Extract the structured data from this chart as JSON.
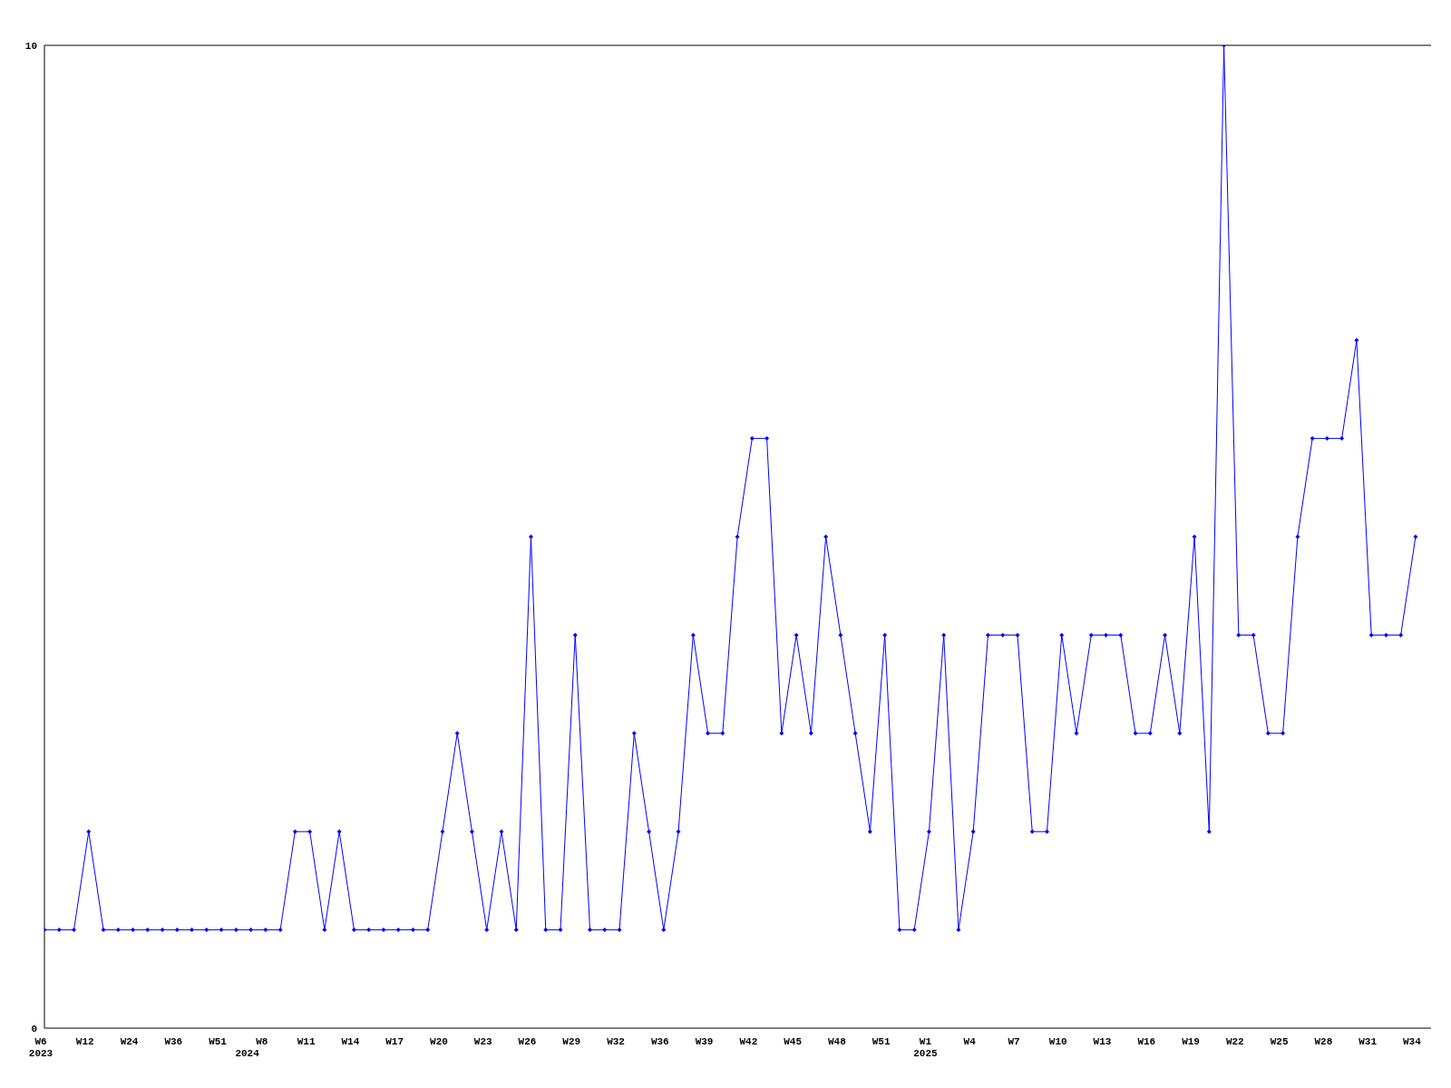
{
  "chart_data": {
    "type": "line",
    "categories": [
      "W6\n2023",
      null,
      null,
      "W12",
      null,
      null,
      "W24",
      null,
      null,
      "W36",
      null,
      null,
      "W51",
      null,
      "\n2024",
      "W8",
      null,
      null,
      "W11",
      null,
      null,
      "W14",
      null,
      null,
      "W17",
      null,
      null,
      "W20",
      null,
      null,
      "W23",
      null,
      null,
      "W26",
      null,
      null,
      "W29",
      null,
      null,
      "W32",
      null,
      null,
      "W36",
      null,
      null,
      "W39",
      null,
      null,
      "W42",
      null,
      null,
      "W45",
      null,
      null,
      "W48",
      null,
      null,
      "W51",
      null,
      null,
      "W1\n2025",
      null,
      null,
      "W4",
      null,
      null,
      "W7",
      null,
      null,
      "W10",
      null,
      null,
      "W13",
      null,
      null,
      "W16",
      null,
      null,
      "W19",
      null,
      null,
      "W22",
      null,
      null,
      "W25",
      null,
      null,
      "W28",
      null,
      null,
      "W31",
      null,
      null,
      "W34"
    ],
    "series": [
      {
        "color": "#0000ff",
        "values": [
          1,
          1,
          1,
          2,
          1,
          1,
          1,
          1,
          1,
          1,
          1,
          1,
          1,
          1,
          1,
          1,
          1,
          2,
          2,
          1,
          2,
          1,
          1,
          1,
          1,
          1,
          1,
          2,
          3,
          2,
          1,
          2,
          1,
          5,
          1,
          1,
          4,
          1,
          1,
          1,
          3,
          2,
          1,
          2,
          4,
          3,
          3,
          5,
          6,
          6,
          3,
          4,
          3,
          5,
          4,
          3,
          2,
          4,
          1,
          1,
          2,
          4,
          1,
          2,
          4,
          4,
          4,
          2,
          2,
          4,
          3,
          4,
          4,
          4,
          3,
          3,
          4,
          3,
          5,
          2,
          10,
          4,
          4,
          3,
          3,
          5,
          6,
          6,
          6,
          7,
          4,
          4,
          4,
          5
        ]
      }
    ],
    "ylim": [
      0,
      10
    ],
    "yticks": [
      0,
      10
    ],
    "grid": false,
    "marker": "diamond",
    "line_style": "solid"
  }
}
